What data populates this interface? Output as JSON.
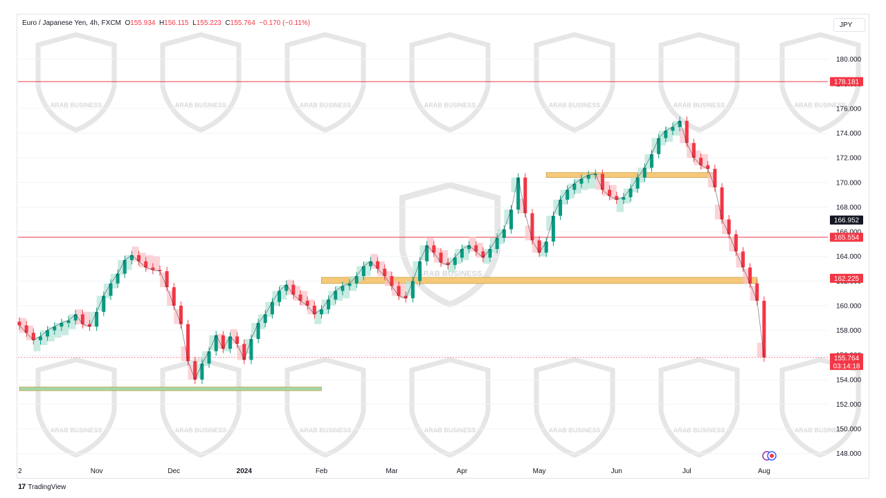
{
  "legend": {
    "symbol": "Euro / Japanese Yen, 4h, FXCM",
    "o_label": "O",
    "o": "155.934",
    "h_label": "H",
    "h": "156.115",
    "l_label": "L",
    "l": "155.223",
    "c_label": "C",
    "c": "155.764",
    "chg": "−0.170 (−0.11%)"
  },
  "currency_button": "JPY",
  "footer": {
    "logo": "17",
    "brand": "TradingView"
  },
  "colors": {
    "up": "#089981",
    "down": "#f23645",
    "zone_orange": "#f5c87a",
    "zone_green": "#a5d6a7",
    "hline": "#f23645",
    "grid": "#f0f3fa"
  },
  "watermark_text": "ARAB BUSINESS",
  "chart_data": {
    "type": "line",
    "title": "Euro / Japanese Yen, 4h, FXCM",
    "xlabel": "",
    "ylabel": "",
    "ylim": [
      147.2,
      182.0
    ],
    "y_ticks": [
      "148.000",
      "150.000",
      "152.000",
      "154.000",
      "156.000",
      "158.000",
      "160.000",
      "162.000",
      "164.000",
      "166.000",
      "168.000",
      "170.000",
      "172.000",
      "174.000",
      "176.000",
      "178.000",
      "180.000"
    ],
    "x_ticks": [
      "2",
      "Nov",
      "Dec",
      "2024",
      "Feb",
      "Mar",
      "Apr",
      "May",
      "Jun",
      "Jul",
      "Aug"
    ],
    "x_tick_index": [
      0,
      11,
      22,
      32,
      43,
      53,
      63,
      74,
      85,
      95,
      106
    ],
    "series": [
      {
        "values": [
          158.4,
          157.8,
          157.2,
          157.5,
          158.0,
          158.3,
          158.6,
          158.8,
          159.3,
          158.5,
          158.3,
          159.5,
          160.8,
          161.8,
          162.6,
          163.7,
          164.1,
          163.6,
          163.1,
          162.9,
          162.8,
          161.5,
          160.0,
          158.5,
          155.5,
          154.0,
          155.3,
          156.3,
          157.6,
          156.5,
          157.5,
          156.9,
          155.6,
          157.3,
          158.6,
          159.3,
          160.3,
          161.2,
          161.7,
          160.9,
          160.4,
          160.0,
          159.3,
          159.7,
          160.5,
          161.2,
          161.6,
          161.8,
          162.4,
          163.2,
          163.6,
          163.0,
          162.4,
          161.6,
          160.8,
          160.6,
          162.0,
          163.6,
          164.9,
          164.3,
          163.5,
          163.3,
          163.9,
          164.6,
          164.9,
          164.4,
          163.9,
          164.6,
          165.5,
          166.2,
          167.8,
          170.4,
          167.5,
          165.3,
          164.3,
          165.2,
          167.3,
          168.6,
          169.4,
          169.9,
          170.3,
          170.6,
          170.7,
          169.4,
          168.9,
          168.6,
          168.8,
          169.5,
          170.4,
          171.2,
          172.3,
          173.6,
          174.2,
          174.5,
          175.0,
          173.2,
          172.0,
          171.4,
          171.1,
          169.6,
          167.0,
          165.8,
          164.4,
          163.1,
          161.8,
          160.4,
          155.8
        ]
      }
    ],
    "horizontal_lines": [
      {
        "value": 178.181,
        "label": "178.181"
      },
      {
        "value": 165.554,
        "label": "165.554"
      }
    ],
    "price_labels": [
      {
        "value": 166.952,
        "label": "166.952",
        "style": "dark"
      },
      {
        "value": 162.225,
        "label": "162.225",
        "style": "red"
      },
      {
        "value": 155.764,
        "label": "155.764",
        "sub": "03:14:18",
        "style": "red"
      }
    ],
    "zones": [
      {
        "name": "resistance-zone-upper",
        "y_top": 170.8,
        "y_bottom": 170.4,
        "x_start_index": 75,
        "x_end_index": 99,
        "color": "#f5c87a"
      },
      {
        "name": "resistance-zone-lower",
        "y_top": 162.3,
        "y_bottom": 161.8,
        "x_start_index": 43,
        "x_end_index": 105,
        "color": "#f5c87a"
      },
      {
        "name": "support-zone",
        "y_top": 153.4,
        "y_bottom": 153.1,
        "x_start_index": 0,
        "x_end_index": 43,
        "color": "#a5d6a7"
      }
    ]
  }
}
